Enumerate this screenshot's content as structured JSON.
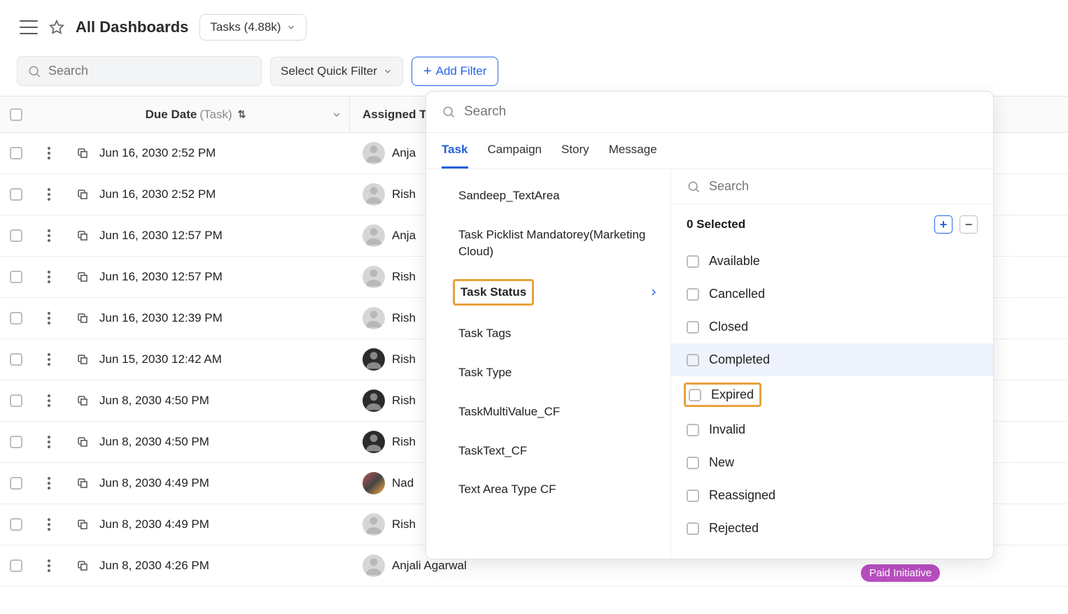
{
  "header": {
    "page_title": "All Dashboards",
    "tasks_pill": "Tasks (4.88k)",
    "search_placeholder": "Search",
    "quick_filter_label": "Select Quick Filter",
    "add_filter_label": "Add Filter"
  },
  "table": {
    "col_due_label": "Due Date",
    "col_due_sub": "(Task)",
    "col_assigned_label": "Assigned T",
    "rows": [
      {
        "date": "Jun 16, 2030 2:52 PM",
        "name": "Anja",
        "avatar": "default"
      },
      {
        "date": "Jun 16, 2030 2:52 PM",
        "name": "Rish",
        "avatar": "default"
      },
      {
        "date": "Jun 16, 2030 12:57 PM",
        "name": "Anja",
        "avatar": "default"
      },
      {
        "date": "Jun 16, 2030 12:57 PM",
        "name": "Rish",
        "avatar": "default"
      },
      {
        "date": "Jun 16, 2030 12:39 PM",
        "name": "Rish",
        "avatar": "default"
      },
      {
        "date": "Jun 15, 2030 12:42 AM",
        "name": "Rish",
        "avatar": "dark"
      },
      {
        "date": "Jun 8, 2030 4:50 PM",
        "name": "Rish",
        "avatar": "dark"
      },
      {
        "date": "Jun 8, 2030 4:50 PM",
        "name": "Rish",
        "avatar": "dark"
      },
      {
        "date": "Jun 8, 2030 4:49 PM",
        "name": "Nad",
        "avatar": "photo"
      },
      {
        "date": "Jun 8, 2030 4:49 PM",
        "name": "Rish",
        "avatar": "default"
      },
      {
        "date": "Jun 8, 2030 4:26 PM",
        "name": "Anjali Agarwal",
        "avatar": "default"
      }
    ]
  },
  "popover": {
    "search_placeholder": "Search",
    "tabs": [
      "Task",
      "Campaign",
      "Story",
      "Message"
    ],
    "active_tab": "Task",
    "left_items": [
      {
        "label": "Sandeep_TextArea"
      },
      {
        "label": "Task Picklist Mandatorey(Marketing Cloud)"
      },
      {
        "label": "Task Status",
        "selected": true,
        "highlighted": true
      },
      {
        "label": "Task Tags"
      },
      {
        "label": "Task Type"
      },
      {
        "label": "TaskMultiValue_CF"
      },
      {
        "label": "TaskText_CF"
      },
      {
        "label": "Text Area Type CF"
      }
    ],
    "right": {
      "search_placeholder": "Search",
      "selected_count_label": "0 Selected",
      "options": [
        {
          "label": "Available"
        },
        {
          "label": "Cancelled"
        },
        {
          "label": "Closed"
        },
        {
          "label": "Completed",
          "hover": true
        },
        {
          "label": "Expired",
          "boxed": true
        },
        {
          "label": "Invalid"
        },
        {
          "label": "New"
        },
        {
          "label": "Reassigned"
        },
        {
          "label": "Rejected"
        }
      ]
    }
  },
  "bg": {
    "paid_label": "Paid Initiative"
  },
  "colors": {
    "accent": "#2563eb",
    "highlight_border": "#e9a13b",
    "row_hover": "#eef3fd",
    "border": "#e4e4e4",
    "muted": "#888888"
  }
}
